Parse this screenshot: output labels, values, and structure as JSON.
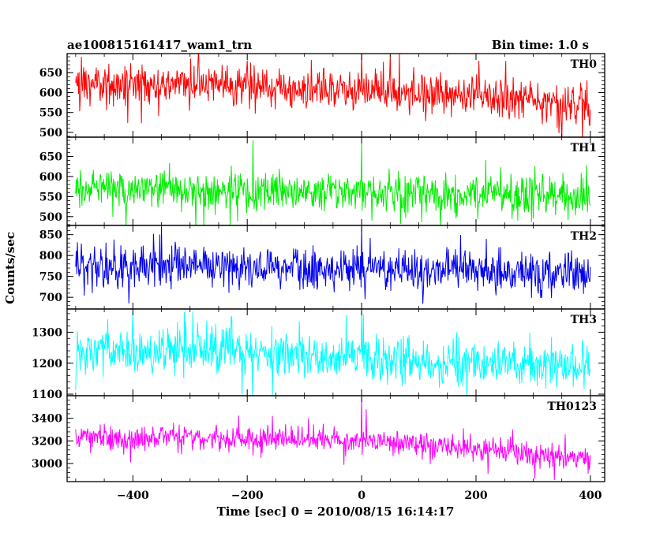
{
  "chart_data": {
    "type": "line",
    "title_left": "ae100815161417_wam1_trn",
    "title_right": "Bin time: 1.0 s",
    "xlabel": "Time [sec] 0 = 2010/08/15 16:14:17",
    "ylabel": "Counts/sec",
    "xlim": [
      -515,
      425
    ],
    "xticks": [
      -400,
      -200,
      0,
      200,
      400
    ],
    "x_start": -500,
    "x_end": 400,
    "bin": 1.0,
    "panels": [
      {
        "name": "TH0",
        "color": "#ff0000",
        "ylim": [
          488,
          698
        ],
        "yticks": [
          500,
          550,
          600,
          650
        ],
        "trend": [
          [
            -500,
            618
          ],
          [
            -300,
            622
          ],
          [
            -100,
            612
          ],
          [
            100,
            600
          ],
          [
            200,
            590
          ],
          [
            400,
            565
          ]
        ],
        "noise": 25,
        "spikes": [
          {
            "x": 0,
            "y": 700
          },
          {
            "x": -490,
            "y": 690
          },
          {
            "x": 50,
            "y": 695
          }
        ]
      },
      {
        "name": "TH1",
        "color": "#00ee00",
        "ylim": [
          478,
          698
        ],
        "yticks": [
          500,
          550,
          600,
          650
        ],
        "trend": [
          [
            -500,
            568
          ],
          [
            -300,
            565
          ],
          [
            -100,
            562
          ],
          [
            100,
            560
          ],
          [
            300,
            555
          ],
          [
            400,
            545
          ]
        ],
        "noise": 24,
        "spikes": [
          {
            "x": 0,
            "y": 685
          },
          {
            "x": -190,
            "y": 690
          }
        ]
      },
      {
        "name": "TH2",
        "color": "#0000ee",
        "ylim": [
          672,
          872
        ],
        "yticks": [
          700,
          750,
          800,
          850
        ],
        "trend": [
          [
            -500,
            770
          ],
          [
            -300,
            772
          ],
          [
            -100,
            768
          ],
          [
            100,
            765
          ],
          [
            300,
            762
          ],
          [
            400,
            758
          ]
        ],
        "noise": 26,
        "spikes": [
          {
            "x": 0,
            "y": 870
          },
          {
            "x": -350,
            "y": 868
          }
        ]
      },
      {
        "name": "TH3",
        "color": "#00ffff",
        "ylim": [
          1095,
          1375
        ],
        "yticks": [
          1100,
          1200,
          1300
        ],
        "trend": [
          [
            -500,
            1235
          ],
          [
            -300,
            1238
          ],
          [
            -100,
            1225
          ],
          [
            100,
            1210
          ],
          [
            300,
            1195
          ],
          [
            400,
            1185
          ]
        ],
        "noise": 36,
        "spikes": [
          {
            "x": 0,
            "y": 1370
          },
          {
            "x": -400,
            "y": 1368
          },
          {
            "x": -310,
            "y": 1365
          }
        ]
      },
      {
        "name": "TH0123",
        "color": "#ff00ff",
        "ylim": [
          2840,
          3600
        ],
        "yticks": [
          3000,
          3200,
          3400
        ],
        "trend": [
          [
            -500,
            3230
          ],
          [
            -300,
            3225
          ],
          [
            -100,
            3215
          ],
          [
            100,
            3180
          ],
          [
            300,
            3080
          ],
          [
            400,
            3030
          ]
        ],
        "noise": 55,
        "spikes": [
          {
            "x": 0,
            "y": 3600
          },
          {
            "x": 8,
            "y": 3480
          }
        ]
      }
    ]
  }
}
